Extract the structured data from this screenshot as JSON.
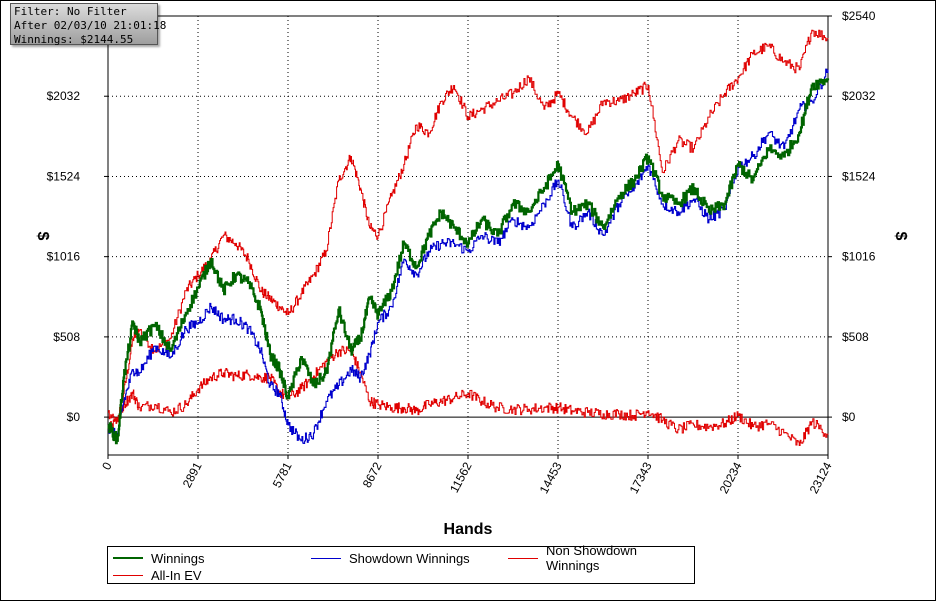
{
  "info_box": {
    "filter": "Filter: No Filter",
    "after": "After 02/03/10 21:01:18",
    "winnings": "Winnings: $2144.55"
  },
  "chart_data": {
    "type": "line",
    "xlabel": "Hands",
    "ylabel_left": "$",
    "ylabel_right": "$",
    "xlim": [
      0,
      23124
    ],
    "ylim": [
      -240,
      2540
    ],
    "x_ticks": [
      0,
      2891,
      5781,
      8672,
      11562,
      14453,
      17343,
      20234,
      23124
    ],
    "x_tick_labels": [
      "0",
      "2891",
      "5781",
      "8672",
      "11562",
      "14453",
      "17343",
      "20234",
      "23124"
    ],
    "y_ticks": [
      0,
      508,
      1016,
      1524,
      2032
    ],
    "y_tick_labels_left": [
      "$0",
      "$508",
      "$1016",
      "$1524",
      "$2032"
    ],
    "y_tick_labels_right": [
      "$0",
      "$508",
      "$1016",
      "$1524",
      "$2032",
      "$2540"
    ],
    "grid": "dotted",
    "legend_placement": "bottom",
    "series": [
      {
        "name": "Winnings",
        "color": "#006400",
        "x": [
          0,
          300,
          500,
          800,
          1000,
          1500,
          2000,
          2500,
          2891,
          3300,
          3700,
          4100,
          4500,
          4900,
          5200,
          5500,
          5781,
          6200,
          6600,
          7000,
          7400,
          7800,
          8100,
          8400,
          8672,
          9100,
          9500,
          9900,
          10300,
          10700,
          11100,
          11562,
          12000,
          12500,
          13000,
          13500,
          14000,
          14453,
          14900,
          15400,
          15900,
          16400,
          16900,
          17343,
          17800,
          18300,
          18800,
          19300,
          19800,
          20234,
          20700,
          21200,
          21700,
          22200,
          22600,
          23124
        ],
        "values": [
          -50,
          -150,
          250,
          600,
          480,
          580,
          420,
          660,
          820,
          1000,
          800,
          900,
          850,
          680,
          400,
          300,
          120,
          380,
          200,
          280,
          680,
          420,
          500,
          750,
          650,
          800,
          1100,
          950,
          1150,
          1300,
          1200,
          1100,
          1250,
          1150,
          1350,
          1300,
          1450,
          1600,
          1300,
          1350,
          1200,
          1400,
          1500,
          1650,
          1400,
          1350,
          1450,
          1300,
          1350,
          1600,
          1500,
          1700,
          1650,
          1800,
          2100,
          2144.55
        ]
      },
      {
        "name": "Showdown Winnings",
        "color": "#0000cd",
        "x": [
          0,
          300,
          500,
          800,
          1000,
          1500,
          2000,
          2500,
          2891,
          3300,
          3700,
          4100,
          4500,
          4900,
          5200,
          5500,
          5781,
          6200,
          6600,
          7000,
          7400,
          7800,
          8100,
          8400,
          8672,
          9100,
          9500,
          9900,
          10300,
          10700,
          11100,
          11562,
          12000,
          12500,
          13000,
          13500,
          14000,
          14453,
          14900,
          15400,
          15900,
          16400,
          16900,
          17343,
          17800,
          18300,
          18800,
          19300,
          19800,
          20234,
          20700,
          21200,
          21700,
          22200,
          22600,
          23124
        ],
        "values": [
          -80,
          -120,
          100,
          300,
          280,
          450,
          380,
          560,
          600,
          700,
          620,
          620,
          560,
          420,
          200,
          150,
          -50,
          -150,
          -100,
          100,
          200,
          300,
          250,
          400,
          600,
          700,
          1000,
          900,
          1050,
          1100,
          1100,
          1050,
          1150,
          1100,
          1250,
          1200,
          1350,
          1500,
          1200,
          1300,
          1150,
          1350,
          1450,
          1600,
          1350,
          1300,
          1380,
          1250,
          1320,
          1580,
          1650,
          1800,
          1700,
          1950,
          2000,
          2200
        ]
      },
      {
        "name": "Non Showdown Winnings",
        "color": "#e00000",
        "x": [
          0,
          300,
          500,
          800,
          1000,
          1500,
          2000,
          2500,
          2891,
          3300,
          3700,
          4100,
          4500,
          4900,
          5200,
          5500,
          5781,
          6200,
          6600,
          7000,
          7400,
          7800,
          8100,
          8400,
          8672,
          9100,
          9500,
          9900,
          10300,
          10700,
          11100,
          11562,
          12000,
          12500,
          13000,
          13500,
          14000,
          14453,
          14900,
          15400,
          15900,
          16400,
          16900,
          17343,
          17800,
          18300,
          18800,
          19300,
          19800,
          20234,
          20700,
          21200,
          21700,
          22200,
          22600,
          23124
        ],
        "values": [
          30,
          -20,
          80,
          150,
          60,
          80,
          30,
          80,
          180,
          250,
          280,
          260,
          270,
          250,
          250,
          160,
          120,
          180,
          260,
          350,
          420,
          420,
          280,
          100,
          80,
          60,
          60,
          40,
          80,
          100,
          120,
          150,
          100,
          60,
          50,
          50,
          60,
          60,
          40,
          30,
          20,
          20,
          10,
          40,
          -20,
          -80,
          -50,
          -60,
          -40,
          10,
          -60,
          -40,
          -100,
          -180,
          -30,
          -110
        ]
      },
      {
        "name": "All-In EV",
        "color": "#e00000",
        "x": [
          0,
          300,
          500,
          800,
          1000,
          1500,
          2000,
          2500,
          2891,
          3300,
          3700,
          4100,
          4500,
          4900,
          5200,
          5500,
          5781,
          6200,
          6600,
          7000,
          7400,
          7800,
          8100,
          8400,
          8672,
          9100,
          9500,
          9900,
          10300,
          10700,
          11100,
          11562,
          12000,
          12500,
          13000,
          13500,
          14000,
          14453,
          14900,
          15400,
          15900,
          16400,
          16900,
          17343,
          17800,
          18300,
          18800,
          19300,
          19800,
          20234,
          20700,
          21200,
          21700,
          22200,
          22600,
          23124
        ],
        "values": [
          -80,
          -20,
          150,
          500,
          550,
          420,
          500,
          800,
          900,
          1000,
          1150,
          1100,
          1000,
          800,
          750,
          700,
          650,
          780,
          900,
          1050,
          1500,
          1650,
          1450,
          1200,
          1150,
          1400,
          1600,
          1850,
          1800,
          2000,
          2100,
          1900,
          1950,
          2000,
          2050,
          2150,
          1950,
          2050,
          1900,
          1800,
          2000,
          2000,
          2050,
          2100,
          1550,
          1750,
          1700,
          1900,
          2050,
          2150,
          2300,
          2350,
          2250,
          2200,
          2450,
          2400
        ]
      }
    ]
  }
}
